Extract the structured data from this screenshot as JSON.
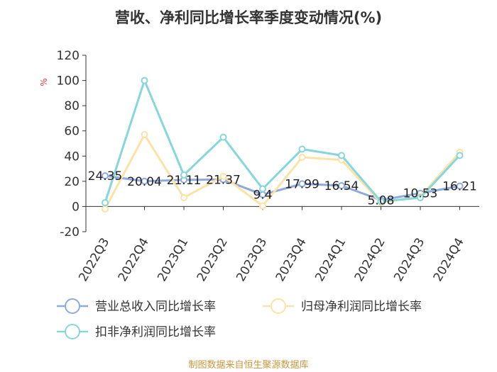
{
  "chart_data": {
    "type": "line",
    "title": "营收、净利同比增长率季度变动情况(%)",
    "ylabel": "%",
    "ylim": [
      -20,
      120
    ],
    "yticks": [
      120,
      100,
      80,
      60,
      40,
      20,
      0,
      -20
    ],
    "categories": [
      "2022Q3",
      "2022Q4",
      "2023Q1",
      "2023Q2",
      "2023Q3",
      "2023Q4",
      "2024Q1",
      "2024Q2",
      "2024Q3",
      "2024Q4"
    ],
    "series": [
      {
        "name": "营业总收入同比增长率",
        "color": "#8eaadb",
        "values": [
          24.35,
          20.04,
          21.11,
          21.37,
          9.4,
          17.99,
          16.54,
          5.08,
          10.53,
          16.21
        ],
        "labels": [
          "24.35",
          "20.04",
          "21.11",
          "21.37",
          "9.4",
          "17.99",
          "16.54",
          "5.08",
          "10.53",
          "16.21"
        ]
      },
      {
        "name": "归母净利润同比增长率",
        "color": "#fde2a8",
        "values": [
          -2,
          57,
          7,
          24,
          0.5,
          39,
          37,
          3,
          8,
          43
        ]
      },
      {
        "name": "扣非净利润同比增长率",
        "color": "#86d7dc",
        "values": [
          3,
          100,
          25,
          55,
          14,
          45.5,
          40.5,
          4,
          7,
          40.5
        ]
      }
    ],
    "legend_position": "bottom",
    "grid": false
  },
  "footer": {
    "source": "制图数据来自恒生聚源数据库"
  }
}
